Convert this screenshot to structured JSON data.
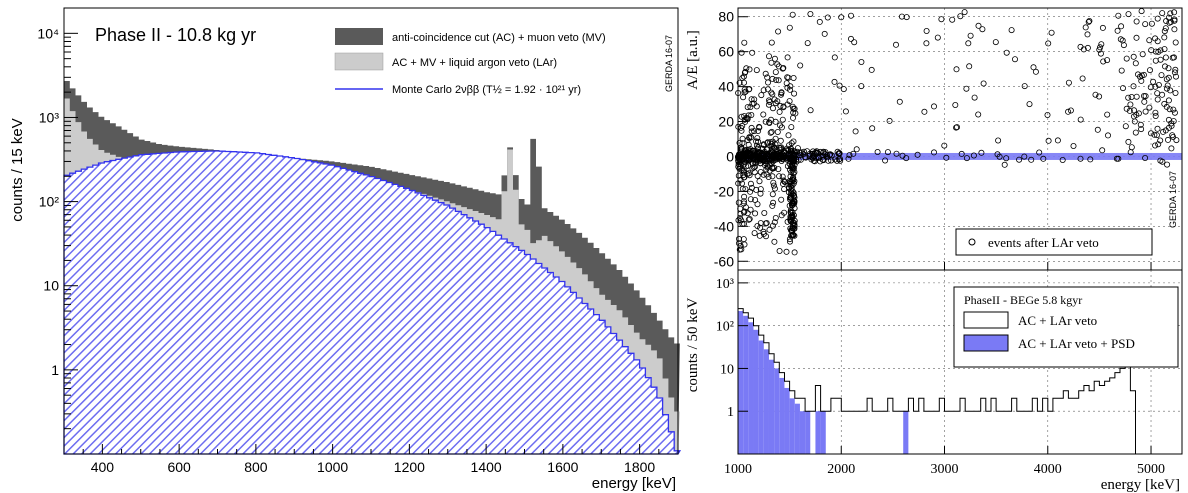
{
  "colors": {
    "ac_mv": "#5a5a5a",
    "ac_mv_lar": "#cccccc",
    "mc_line": "#3333ee",
    "mc_hatch": "#6d6df0",
    "psd_fill": "#7a7af5",
    "markers": "#000000"
  },
  "chart_data": [
    {
      "type": "histogram",
      "title": "Phase II - 10.8 kg yr",
      "watermark": "GERDA 16-07",
      "xlabel": "energy [keV]",
      "ylabel": "counts / 15 keV",
      "log_y": true,
      "xlim": [
        300,
        1900
      ],
      "ylim": [
        0.1,
        20000
      ],
      "bin_width_keV": 15,
      "x_ticks": [
        "400",
        "600",
        "800",
        "1000",
        "1200",
        "1400",
        "1600",
        "1800"
      ],
      "y_ticks": [
        "1",
        "10",
        "10²",
        "10³",
        "10⁴"
      ],
      "legend": [
        {
          "key": "ac_mv",
          "label": "anti-coincidence cut (AC) + muon veto (MV)",
          "style": "fill"
        },
        {
          "key": "ac_mv_lar",
          "label": "AC + MV + liquid argon veto (LAr)",
          "style": "fill"
        },
        {
          "key": "mc",
          "label": "Monte Carlo 2νββ (T½ = 1.92 · 10²¹ yr)",
          "style": "line"
        }
      ],
      "series": [
        {
          "key": "ac_mv",
          "points": [
            [
              300,
              3000
            ],
            [
              330,
              2000
            ],
            [
              360,
              1400
            ],
            [
              400,
              1000
            ],
            [
              450,
              750
            ],
            [
              500,
              550
            ],
            [
              550,
              480
            ],
            [
              600,
              450
            ],
            [
              650,
              430
            ],
            [
              700,
              410
            ],
            [
              800,
              370
            ],
            [
              900,
              330
            ],
            [
              1000,
              300
            ],
            [
              1100,
              260
            ],
            [
              1200,
              210
            ],
            [
              1300,
              170
            ],
            [
              1400,
              130
            ],
            [
              1440,
              120
            ],
            [
              1460,
              500
            ],
            [
              1490,
              110
            ],
            [
              1510,
              90
            ],
            [
              1525,
              800
            ],
            [
              1550,
              85
            ],
            [
              1600,
              60
            ],
            [
              1650,
              40
            ],
            [
              1700,
              25
            ],
            [
              1750,
              15
            ],
            [
              1800,
              8
            ],
            [
              1850,
              4
            ],
            [
              1880,
              2.5
            ],
            [
              1900,
              2
            ]
          ]
        },
        {
          "key": "ac_mv_lar",
          "points": [
            [
              300,
              2000
            ],
            [
              330,
              1000
            ],
            [
              360,
              600
            ],
            [
              400,
              400
            ],
            [
              450,
              330
            ],
            [
              500,
              320
            ],
            [
              550,
              330
            ],
            [
              600,
              340
            ],
            [
              650,
              340
            ],
            [
              700,
              330
            ],
            [
              800,
              300
            ],
            [
              900,
              260
            ],
            [
              1000,
              220
            ],
            [
              1100,
              180
            ],
            [
              1200,
              140
            ],
            [
              1300,
              100
            ],
            [
              1400,
              70
            ],
            [
              1440,
              60
            ],
            [
              1460,
              500
            ],
            [
              1490,
              55
            ],
            [
              1510,
              45
            ],
            [
              1525,
              30
            ],
            [
              1550,
              40
            ],
            [
              1600,
              25
            ],
            [
              1650,
              15
            ],
            [
              1700,
              8
            ],
            [
              1750,
              5
            ],
            [
              1800,
              2.5
            ],
            [
              1850,
              1.5
            ],
            [
              1880,
              0.5
            ],
            [
              1900,
              0.3
            ]
          ]
        },
        {
          "key": "mc",
          "points": [
            [
              300,
              200
            ],
            [
              400,
              290
            ],
            [
              500,
              360
            ],
            [
              600,
              390
            ],
            [
              700,
              400
            ],
            [
              800,
              380
            ],
            [
              900,
              330
            ],
            [
              1000,
              270
            ],
            [
              1100,
              200
            ],
            [
              1200,
              140
            ],
            [
              1300,
              90
            ],
            [
              1400,
              50
            ],
            [
              1500,
              25
            ],
            [
              1600,
              11
            ],
            [
              1700,
              4
            ],
            [
              1800,
              1.2
            ],
            [
              1850,
              0.5
            ],
            [
              1880,
              0.2
            ],
            [
              1900,
              0.1
            ]
          ]
        }
      ]
    },
    {
      "type": "scatter",
      "watermark": "GERDA 16-07",
      "ylabel": "A/E [a.u.]",
      "xlim": [
        1000,
        5300
      ],
      "ylim": [
        -65,
        85
      ],
      "x_ticks": [
        "1000",
        "2000",
        "3000",
        "4000",
        "5000"
      ],
      "y_ticks": [
        "-60",
        "-40",
        "-20",
        "0",
        "20",
        "40",
        "60",
        "80"
      ],
      "grid": true,
      "legend": [
        {
          "label": "events after LAr veto",
          "style": "marker"
        }
      ],
      "accepted_band": [
        -2,
        2
      ],
      "series": [
        {
          "name": "events after LAr veto"
        }
      ]
    },
    {
      "type": "histogram",
      "xlabel": "energy [keV]",
      "ylabel": "counts / 50 keV",
      "log_y": true,
      "xlim": [
        1000,
        5300
      ],
      "ylim": [
        0.1,
        2000
      ],
      "x_ticks": [
        "1000",
        "2000",
        "3000",
        "4000",
        "5000"
      ],
      "y_ticks": [
        "1",
        "10",
        "10²",
        "10³"
      ],
      "grid": true,
      "legend": [
        {
          "label": "PhaseII - BEGe 5.8 kgyr",
          "style": "title"
        },
        {
          "key": "ac_lar",
          "label": "AC + LAr veto",
          "style": "outline"
        },
        {
          "key": "ac_lar_psd",
          "label": "AC + LAr veto + PSD",
          "style": "fill"
        }
      ],
      "series": [
        {
          "key": "ac_lar",
          "values_by_50keV_from_1000": [
            250,
            200,
            150,
            100,
            60,
            40,
            22,
            14,
            8,
            5,
            3,
            2,
            2,
            1,
            1,
            4,
            1,
            1,
            2,
            2,
            1,
            1,
            1,
            1,
            1,
            2,
            1,
            1,
            1,
            2,
            1,
            1,
            1,
            2,
            1,
            2,
            1,
            1,
            1,
            2,
            1,
            1,
            1,
            2,
            1,
            1,
            1,
            2,
            1,
            2,
            1,
            1,
            1,
            2,
            1,
            1,
            1,
            2,
            1,
            2,
            1,
            2,
            2,
            3,
            2,
            2,
            3,
            4,
            3,
            5,
            4,
            5,
            6,
            8,
            10,
            20,
            3,
            0
          ]
        },
        {
          "key": "ac_lar_psd",
          "values_by_50keV_from_1000": [
            220,
            170,
            120,
            80,
            45,
            28,
            16,
            10,
            6,
            3.5,
            2,
            1.5,
            1,
            1,
            0,
            1,
            1,
            0,
            0,
            0,
            0,
            0,
            0,
            0,
            0,
            0,
            0,
            0,
            0,
            0,
            0,
            0,
            1
          ]
        }
      ]
    }
  ]
}
